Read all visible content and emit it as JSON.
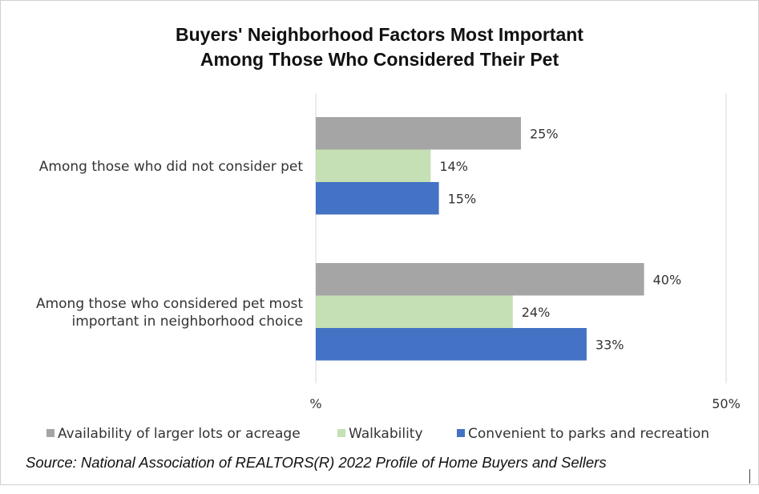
{
  "chart_data": {
    "type": "bar",
    "orientation": "horizontal",
    "title_line1": "Buyers' Neighborhood Factors Most Important",
    "title_line2": "Among Those Who Considered Their Pet",
    "categories": [
      [
        "Among those who did not consider pet"
      ],
      [
        "Among those who considered pet most",
        "important in neighborhood choice"
      ]
    ],
    "series": [
      {
        "name": "Availability of larger lots or acreage",
        "color": "#a5a5a5",
        "values": [
          25,
          40
        ],
        "labels": [
          "25%",
          "40%"
        ]
      },
      {
        "name": "Walkability",
        "color": "#c5e0b4",
        "values": [
          14,
          24
        ],
        "labels": [
          "14%",
          "24%"
        ]
      },
      {
        "name": "Convenient to parks and recreation",
        "color": "#4472c4",
        "values": [
          15,
          33
        ],
        "labels": [
          "15%",
          "33%"
        ]
      }
    ],
    "xlim": [
      0,
      50
    ],
    "xtick_labels": [
      "%",
      "50%"
    ],
    "legend_position": "bottom",
    "grid": false
  },
  "source": "Source: National Association of REALTORS(R) 2022 Profile of Home Buyers and Sellers"
}
